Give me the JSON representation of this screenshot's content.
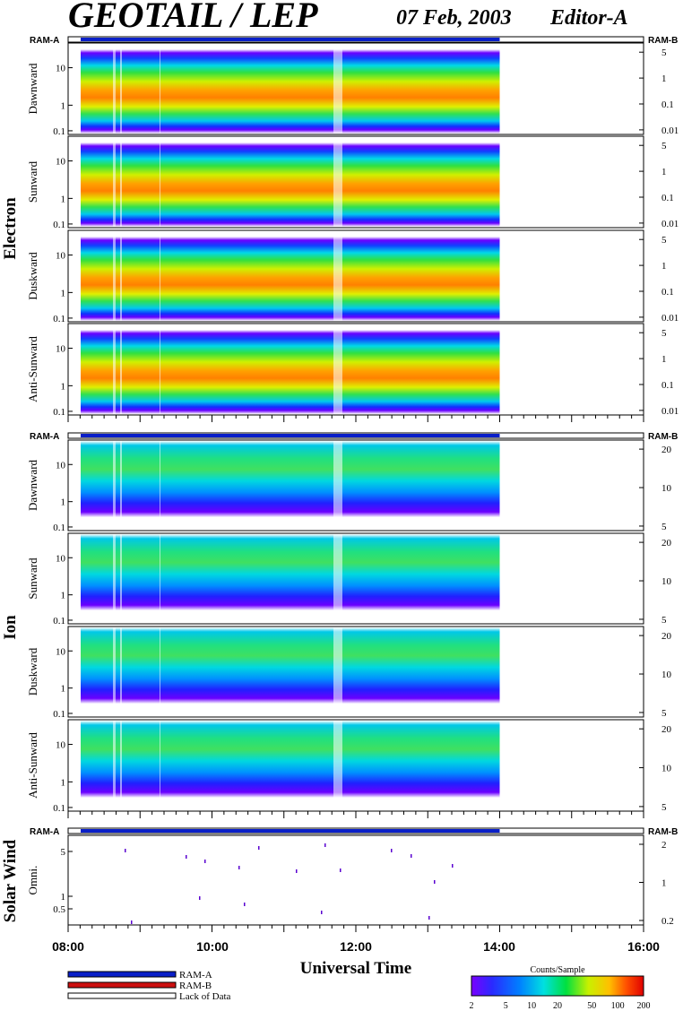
{
  "header": {
    "title": "GEOTAIL / LEP",
    "date": "07 Feb, 2003",
    "editor": "Editor-A"
  },
  "groups": {
    "electron": "Electron",
    "ion": "Ion",
    "solar_wind": "Solar Wind"
  },
  "ram_labels": {
    "a": "RAM-A",
    "b": "RAM-B"
  },
  "colors": {
    "ram_a": "#0a1fc8",
    "ram_b": "#cc1010",
    "lack": "#ffffff"
  },
  "chart_data": [
    {
      "type": "heatmap",
      "title": "Electron",
      "x_range": [
        "08:00",
        "16:00"
      ],
      "data_end": "14:00",
      "panels": [
        {
          "name": "Dawnward",
          "y_ticks": [
            "10",
            "1",
            "0.1"
          ],
          "right_ticks": [
            "5",
            "1",
            "0.1",
            "0.01"
          ]
        },
        {
          "name": "Sunward",
          "y_ticks": [
            "10",
            "1",
            "0.1"
          ],
          "right_ticks": [
            "5",
            "1",
            "0.1",
            "0.01"
          ]
        },
        {
          "name": "Duskward",
          "y_ticks": [
            "10",
            "1",
            "0.1"
          ],
          "right_ticks": [
            "5",
            "1",
            "0.1",
            "0.01"
          ]
        },
        {
          "name": "Anti-Sunward",
          "y_ticks": [
            "10",
            "1",
            "0.1"
          ],
          "right_ticks": [
            "5",
            "1",
            "0.1",
            "0.01"
          ]
        }
      ]
    },
    {
      "type": "heatmap",
      "title": "Ion",
      "x_range": [
        "08:00",
        "16:00"
      ],
      "data_end": "14:00",
      "panels": [
        {
          "name": "Dawnward",
          "y_ticks": [
            "10",
            "1",
            "0.1"
          ],
          "right_ticks": [
            "20",
            "10",
            "5"
          ]
        },
        {
          "name": "Sunward",
          "y_ticks": [
            "10",
            "1",
            "0.1"
          ],
          "right_ticks": [
            "20",
            "10",
            "5"
          ]
        },
        {
          "name": "Duskward",
          "y_ticks": [
            "10",
            "1",
            "0.1"
          ],
          "right_ticks": [
            "20",
            "10",
            "5"
          ]
        },
        {
          "name": "Anti-Sunward",
          "y_ticks": [
            "10",
            "1",
            "0.1"
          ],
          "right_ticks": [
            "20",
            "10",
            "5"
          ]
        }
      ]
    },
    {
      "type": "heatmap",
      "title": "Solar Wind",
      "x_range": [
        "08:00",
        "16:00"
      ],
      "data_end": "14:00",
      "panels": [
        {
          "name": "Omni.",
          "y_ticks": [
            "5",
            "1",
            "0.5"
          ],
          "right_ticks": [
            "2",
            "1",
            "0.2"
          ]
        }
      ]
    }
  ],
  "x_axis": {
    "label": "Universal Time",
    "ticks": [
      "08:00",
      "10:00",
      "12:00",
      "14:00",
      "16:00"
    ]
  },
  "legend": {
    "ram_a": "RAM-A",
    "ram_b": "RAM-B",
    "lack": "Lack of Data"
  },
  "colorbar": {
    "title": "Counts/Sample",
    "ticks": [
      "2",
      "5",
      "10",
      "20",
      "50",
      "100",
      "200"
    ]
  }
}
